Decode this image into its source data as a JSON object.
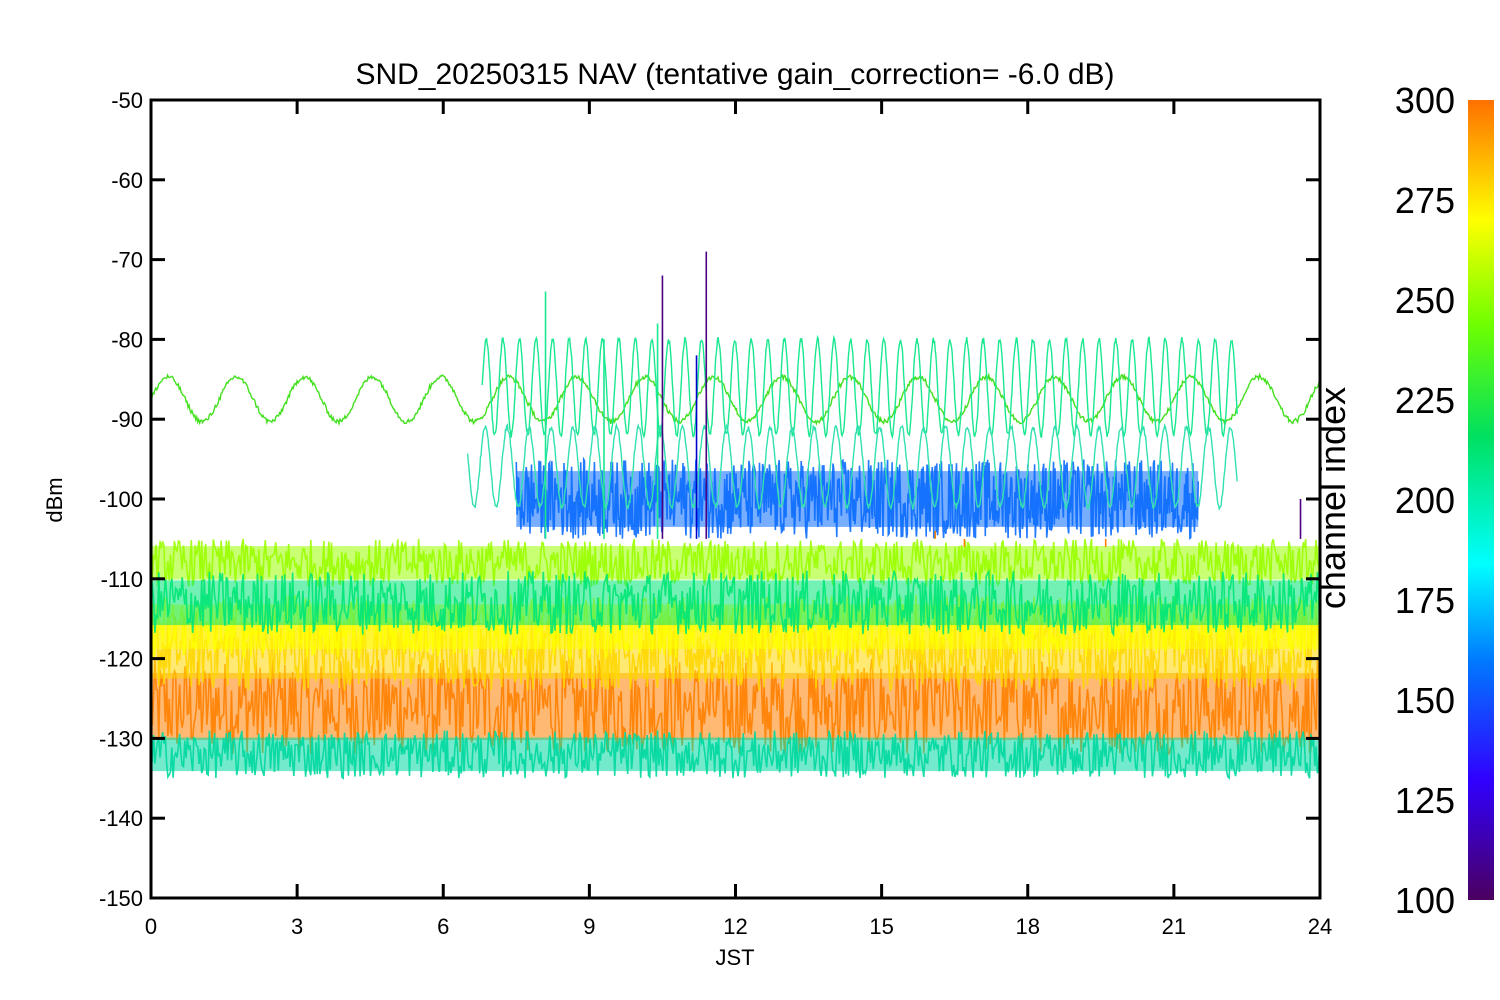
{
  "chart_data": {
    "type": "line",
    "title": "SND_20250315 NAV (tentative gain_correction= -6.0 dB)",
    "xlabel": "JST",
    "ylabel": "dBm",
    "xlim": [
      0,
      24
    ],
    "ylim": [
      -150,
      -50
    ],
    "x_ticks": [
      "0",
      "3",
      "6",
      "9",
      "12",
      "15",
      "18",
      "21",
      "24"
    ],
    "y_ticks": [
      "-50",
      "-60",
      "-70",
      "-80",
      "-90",
      "-100",
      "-110",
      "-120",
      "-130",
      "-140",
      "-150"
    ],
    "colorbar": {
      "label": "channel index",
      "range": [
        100,
        300
      ],
      "ticks": [
        "300",
        "275",
        "250",
        "225",
        "200",
        "175",
        "150",
        "125",
        "100"
      ],
      "colors": [
        "#800080",
        "#0000ff",
        "#00ffff",
        "#00ff80",
        "#80ff00",
        "#ffff00",
        "#ff8000"
      ]
    },
    "bands": [
      {
        "channel": 290,
        "color": "#ff8000",
        "center_dbm": -126,
        "spread_dbm": 6,
        "x_range": [
          0,
          24
        ]
      },
      {
        "channel": 275,
        "color": "#ffd700",
        "center_dbm": -119,
        "spread_dbm": 5,
        "x_range": [
          0,
          24
        ]
      },
      {
        "channel": 260,
        "color": "#ffff00",
        "center_dbm": -116,
        "spread_dbm": 4,
        "x_range": [
          0,
          24
        ]
      },
      {
        "channel": 245,
        "color": "#9aff00",
        "center_dbm": -108,
        "spread_dbm": 3,
        "x_range": [
          0,
          24
        ]
      },
      {
        "channel": 215,
        "color": "#00e676",
        "center_dbm": -113,
        "spread_dbm": 4,
        "x_range": [
          0,
          24
        ]
      },
      {
        "channel": 200,
        "color": "#00d8a0",
        "center_dbm": -132,
        "spread_dbm": 3,
        "x_range": [
          0,
          24
        ]
      },
      {
        "channel": 160,
        "color": "#0a6cff",
        "center_dbm": -100,
        "spread_dbm": 5,
        "x_range": [
          7.5,
          21.5
        ]
      }
    ],
    "sine_traces": [
      {
        "channel": 238,
        "color": "#44e020",
        "x_range": [
          0,
          24
        ],
        "center_dbm": -87.5,
        "amplitude_dbm": 2.8,
        "period_h": 1.4
      },
      {
        "channel": 215,
        "color": "#19e890",
        "x_range": [
          6.8,
          22.3
        ],
        "center_dbm": -86,
        "amplitude_dbm": 6,
        "period_h": 0.34
      },
      {
        "channel": 205,
        "color": "#33e0b0",
        "x_range": [
          6.5,
          22.3
        ],
        "center_dbm": -96,
        "amplitude_dbm": 5,
        "period_h": 0.45
      }
    ],
    "spikes": [
      {
        "x": 10.5,
        "peak_dbm": -72,
        "color": "#4b0082"
      },
      {
        "x": 11.4,
        "peak_dbm": -69,
        "color": "#4b0082"
      },
      {
        "x": 10.4,
        "peak_dbm": -78,
        "color": "#19e890"
      },
      {
        "x": 8.1,
        "peak_dbm": -74,
        "color": "#19e890"
      },
      {
        "x": 11.2,
        "peak_dbm": -82,
        "color": "#0000cd"
      },
      {
        "x": 9.3,
        "peak_dbm": -80,
        "color": "#19e890"
      },
      {
        "x": 16.1,
        "peak_dbm": -104,
        "color": "#ff8000"
      },
      {
        "x": 16.7,
        "peak_dbm": -106,
        "color": "#ff8000"
      },
      {
        "x": 19.6,
        "peak_dbm": -106,
        "color": "#ff8000"
      },
      {
        "x": 23.6,
        "peak_dbm": -100,
        "color": "#4b0082"
      }
    ],
    "grid": false,
    "legend": "colorbar-right"
  }
}
